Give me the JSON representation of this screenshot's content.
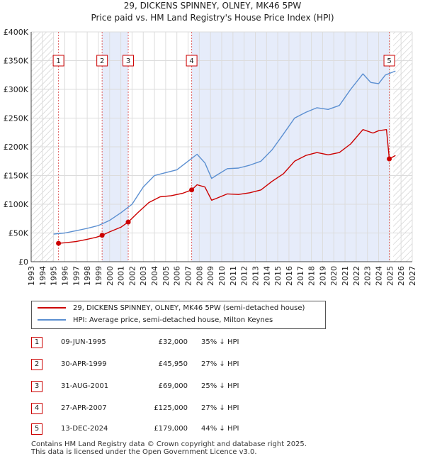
{
  "header": {
    "title": "29, DICKENS SPINNEY, OLNEY, MK46 5PW",
    "subtitle": "Price paid vs. HM Land Registry's House Price Index (HPI)"
  },
  "legend": {
    "property_label": "29, DICKENS SPINNEY, OLNEY, MK46 5PW (semi-detached house)",
    "hpi_label": "HPI: Average price, semi-detached house, Milton Keynes"
  },
  "transactions": [
    {
      "num": "1",
      "date": "09-JUN-1995",
      "price": "£32,000",
      "hpi": "35% ↓ HPI"
    },
    {
      "num": "2",
      "date": "30-APR-1999",
      "price": "£45,950",
      "hpi": "27% ↓ HPI"
    },
    {
      "num": "3",
      "date": "31-AUG-2001",
      "price": "£69,000",
      "hpi": "25% ↓ HPI"
    },
    {
      "num": "4",
      "date": "27-APR-2007",
      "price": "£125,000",
      "hpi": "27% ↓ HPI"
    },
    {
      "num": "5",
      "date": "13-DEC-2024",
      "price": "£179,000",
      "hpi": "44% ↓ HPI"
    }
  ],
  "footer": {
    "line1": "Contains HM Land Registry data © Crown copyright and database right 2025.",
    "line2": "This data is licensed under the Open Government Licence v3.0."
  },
  "chart_data": {
    "type": "line",
    "title": "29, DICKENS SPINNEY, OLNEY, MK46 5PW",
    "subtitle": "Price paid vs. HM Land Registry's House Price Index (HPI)",
    "xlabel": "",
    "ylabel": "",
    "xlim": [
      1993,
      2027
    ],
    "ylim": [
      0,
      400000
    ],
    "x_ticks": [
      1993,
      1994,
      1995,
      1996,
      1997,
      1998,
      1999,
      2000,
      2001,
      2002,
      2003,
      2004,
      2005,
      2006,
      2007,
      2008,
      2009,
      2010,
      2011,
      2012,
      2013,
      2014,
      2015,
      2016,
      2017,
      2018,
      2019,
      2020,
      2021,
      2022,
      2023,
      2024,
      2025,
      2026,
      2027
    ],
    "y_ticks": [
      0,
      50000,
      100000,
      150000,
      200000,
      250000,
      300000,
      350000,
      400000
    ],
    "y_tick_labels": [
      "£0",
      "£50K",
      "£100K",
      "£150K",
      "£200K",
      "£250K",
      "£300K",
      "£350K",
      "£400K"
    ],
    "colors": {
      "property": "#cc0000",
      "hpi": "#5b8fd1",
      "shade": "#e6ecfa",
      "hatch": "#c8c8c8",
      "grid": "#dcdcdc",
      "vline": "#e06060"
    },
    "series": [
      {
        "name": "29, DICKENS SPINNEY, OLNEY, MK46 5PW (semi-detached house)",
        "points": [
          [
            1995.44,
            32000
          ],
          [
            1996.0,
            33000
          ],
          [
            1997.0,
            35000
          ],
          [
            1998.0,
            39000
          ],
          [
            1998.8,
            42500
          ],
          [
            1999.33,
            45950
          ],
          [
            2000.0,
            52000
          ],
          [
            2001.0,
            60000
          ],
          [
            2001.66,
            69000
          ],
          [
            2002.5,
            85000
          ],
          [
            2003.5,
            103000
          ],
          [
            2004.5,
            113000
          ],
          [
            2005.5,
            115000
          ],
          [
            2006.5,
            119000
          ],
          [
            2007.32,
            125000
          ],
          [
            2007.8,
            134000
          ],
          [
            2008.5,
            130000
          ],
          [
            2009.1,
            107000
          ],
          [
            2009.5,
            110000
          ],
          [
            2010.5,
            118000
          ],
          [
            2011.5,
            117000
          ],
          [
            2012.5,
            120000
          ],
          [
            2013.5,
            125000
          ],
          [
            2014.5,
            140000
          ],
          [
            2015.5,
            153000
          ],
          [
            2016.5,
            175000
          ],
          [
            2017.5,
            185000
          ],
          [
            2018.5,
            190000
          ],
          [
            2019.5,
            186000
          ],
          [
            2020.5,
            190000
          ],
          [
            2021.5,
            205000
          ],
          [
            2022.6,
            230000
          ],
          [
            2023.5,
            224000
          ],
          [
            2024.0,
            228000
          ],
          [
            2024.7,
            230000
          ],
          [
            2024.95,
            179000
          ],
          [
            2025.5,
            185000
          ]
        ]
      },
      {
        "name": "HPI: Average price, semi-detached house, Milton Keynes",
        "points": [
          [
            1995.0,
            48000
          ],
          [
            1996.0,
            50000
          ],
          [
            1997.0,
            54000
          ],
          [
            1998.0,
            58000
          ],
          [
            1999.0,
            63000
          ],
          [
            2000.0,
            72000
          ],
          [
            2001.0,
            85000
          ],
          [
            2002.0,
            100000
          ],
          [
            2003.0,
            130000
          ],
          [
            2004.0,
            150000
          ],
          [
            2005.0,
            155000
          ],
          [
            2006.0,
            160000
          ],
          [
            2007.0,
            175000
          ],
          [
            2007.8,
            187000
          ],
          [
            2008.5,
            172000
          ],
          [
            2009.1,
            145000
          ],
          [
            2009.5,
            150000
          ],
          [
            2010.5,
            162000
          ],
          [
            2011.5,
            163000
          ],
          [
            2012.5,
            168000
          ],
          [
            2013.5,
            175000
          ],
          [
            2014.5,
            195000
          ],
          [
            2015.5,
            222000
          ],
          [
            2016.5,
            250000
          ],
          [
            2017.5,
            260000
          ],
          [
            2018.5,
            268000
          ],
          [
            2019.5,
            265000
          ],
          [
            2020.5,
            272000
          ],
          [
            2021.5,
            300000
          ],
          [
            2022.6,
            327000
          ],
          [
            2023.3,
            312000
          ],
          [
            2024.0,
            310000
          ],
          [
            2024.6,
            325000
          ],
          [
            2025.5,
            332000
          ]
        ]
      }
    ],
    "sales": [
      {
        "label": "1",
        "x": 1995.44,
        "y": 32000
      },
      {
        "label": "2",
        "x": 1999.33,
        "y": 45950
      },
      {
        "label": "3",
        "x": 2001.66,
        "y": 69000
      },
      {
        "label": "4",
        "x": 2007.32,
        "y": 125000
      },
      {
        "label": "5",
        "x": 2024.95,
        "y": 179000
      }
    ],
    "shaded_spans": [
      [
        1999.33,
        2001.66
      ],
      [
        2007.32,
        2024.95
      ]
    ],
    "hatched_spans": [
      [
        1993,
        1995.0
      ],
      [
        2025.3,
        2027
      ]
    ]
  }
}
